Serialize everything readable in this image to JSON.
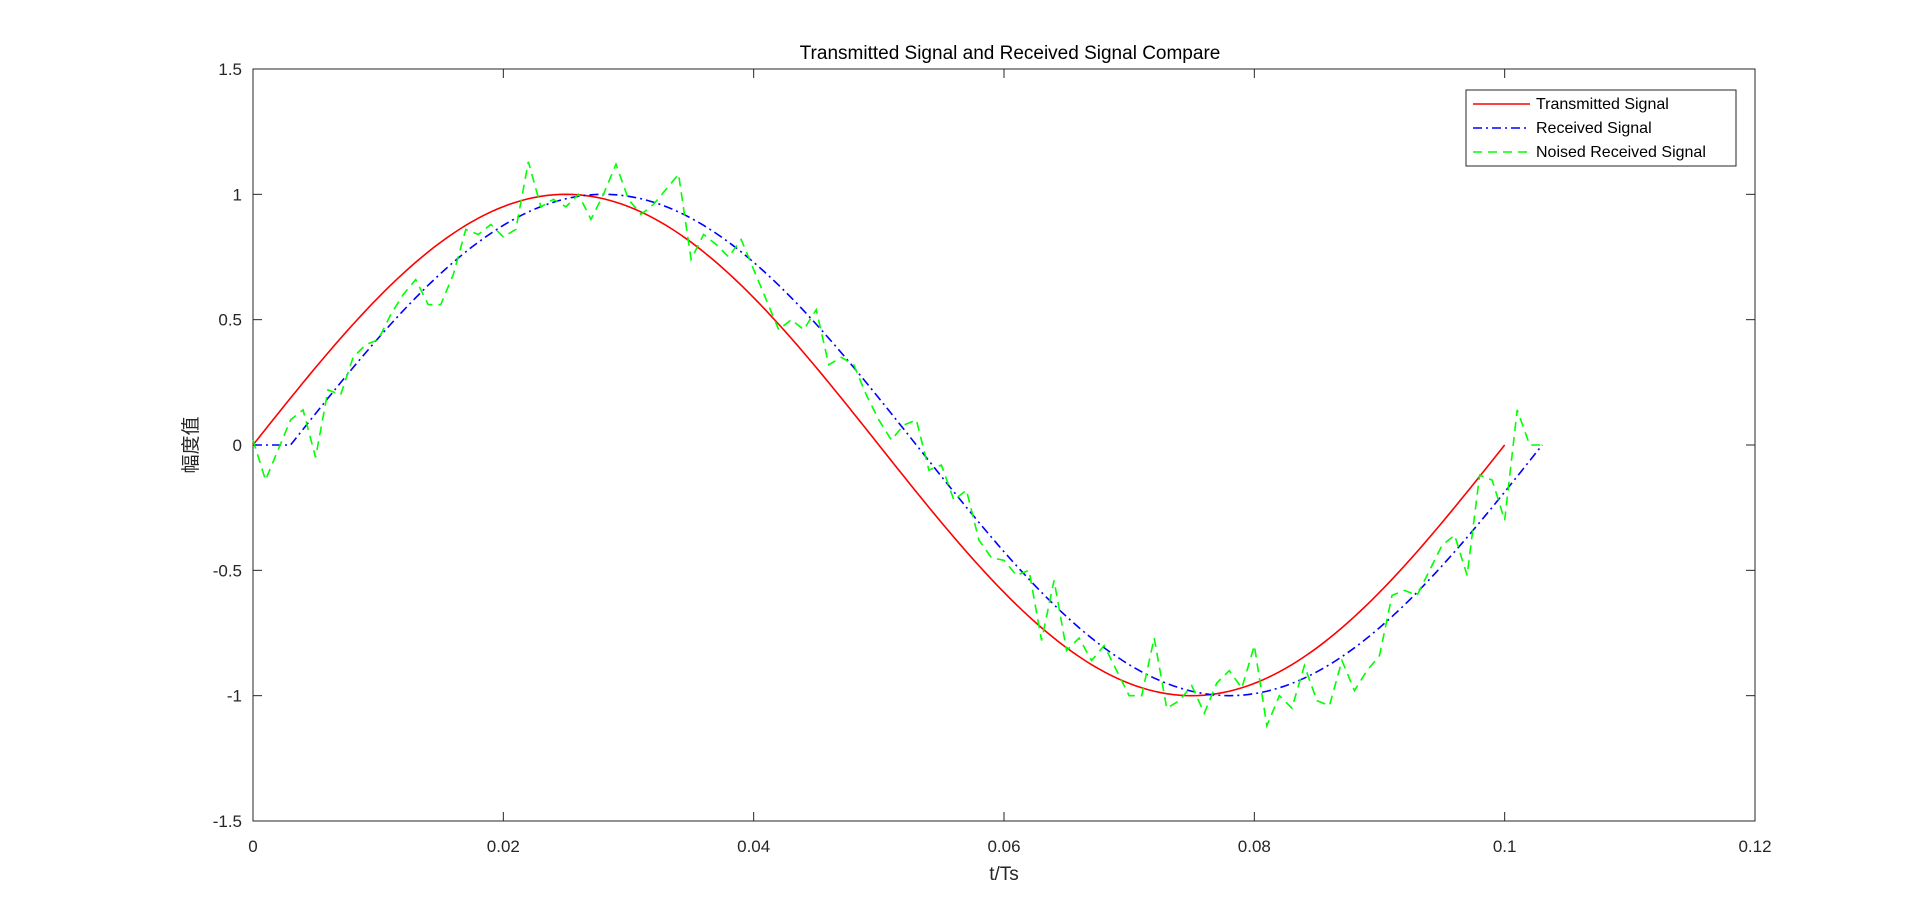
{
  "chart_data": {
    "type": "line",
    "title": "Transmitted Signal and Received Signal Compare",
    "xlabel": "t/Ts",
    "ylabel": "幅度值",
    "xlim": [
      0,
      0.12
    ],
    "ylim": [
      -1.5,
      1.5
    ],
    "xticks": [
      0,
      0.02,
      0.04,
      0.06,
      0.08,
      0.1,
      0.12
    ],
    "xtick_labels": [
      "0",
      "0.02",
      "0.04",
      "0.06",
      "0.08",
      "0.1",
      "0.12"
    ],
    "yticks": [
      -1.5,
      -1,
      -0.5,
      0,
      0.5,
      1,
      1.5
    ],
    "ytick_labels": [
      "-1.5",
      "-1",
      "-0.5",
      "0",
      "0.5",
      "1",
      "1.5"
    ],
    "grid": false,
    "legend_location": "top-right",
    "series": [
      {
        "name": "Transmitted Signal",
        "color": "#ff0000",
        "style": "solid",
        "x": [
          0,
          0.005,
          0.01,
          0.015,
          0.02,
          0.025,
          0.03,
          0.035,
          0.04,
          0.045,
          0.05,
          0.055,
          0.06,
          0.065,
          0.07,
          0.075,
          0.08,
          0.085,
          0.09,
          0.095,
          0.1
        ],
        "y": [
          0,
          0.31,
          0.59,
          0.81,
          0.95,
          1.0,
          0.95,
          0.81,
          0.59,
          0.31,
          0,
          -0.31,
          -0.59,
          -0.81,
          -0.95,
          -1.0,
          -0.95,
          -0.81,
          -0.59,
          -0.31,
          0
        ]
      },
      {
        "name": "Received Signal",
        "color": "#0000ff",
        "style": "dashdot",
        "x": [
          0,
          0.003,
          0.008,
          0.013,
          0.018,
          0.023,
          0.028,
          0.033,
          0.038,
          0.043,
          0.048,
          0.053,
          0.058,
          0.063,
          0.068,
          0.073,
          0.078,
          0.083,
          0.088,
          0.093,
          0.098,
          0.103
        ],
        "y": [
          0,
          0,
          0.31,
          0.59,
          0.81,
          0.95,
          1.0,
          0.95,
          0.81,
          0.59,
          0.31,
          0,
          -0.31,
          -0.59,
          -0.81,
          -0.95,
          -1.0,
          -0.95,
          -0.81,
          -0.59,
          -0.31,
          0
        ]
      },
      {
        "name": "Noised Received Signal",
        "color": "#00ff00",
        "style": "dashed",
        "x": [
          0,
          0.001,
          0.002,
          0.003,
          0.004,
          0.005,
          0.006,
          0.007,
          0.008,
          0.009,
          0.01,
          0.011,
          0.012,
          0.013,
          0.014,
          0.015,
          0.016,
          0.017,
          0.018,
          0.019,
          0.02,
          0.021,
          0.022,
          0.023,
          0.024,
          0.025,
          0.026,
          0.027,
          0.028,
          0.029,
          0.03,
          0.031,
          0.032,
          0.033,
          0.034,
          0.035,
          0.036,
          0.037,
          0.038,
          0.039,
          0.04,
          0.041,
          0.042,
          0.043,
          0.044,
          0.045,
          0.046,
          0.047,
          0.048,
          0.049,
          0.05,
          0.051,
          0.052,
          0.053,
          0.054,
          0.055,
          0.056,
          0.057,
          0.058,
          0.059,
          0.06,
          0.061,
          0.062,
          0.063,
          0.064,
          0.065,
          0.066,
          0.067,
          0.068,
          0.069,
          0.07,
          0.071,
          0.072,
          0.073,
          0.074,
          0.075,
          0.076,
          0.077,
          0.078,
          0.079,
          0.08,
          0.081,
          0.082,
          0.083,
          0.084,
          0.085,
          0.086,
          0.087,
          0.088,
          0.089,
          0.09,
          0.091,
          0.092,
          0.093,
          0.094,
          0.095,
          0.096,
          0.097,
          0.098,
          0.099,
          0.1,
          0.101,
          0.102,
          0.103
        ],
        "y": [
          0.02,
          -0.14,
          -0.02,
          0.1,
          0.14,
          -0.05,
          0.22,
          0.2,
          0.35,
          0.4,
          0.42,
          0.52,
          0.6,
          0.66,
          0.56,
          0.56,
          0.68,
          0.86,
          0.84,
          0.88,
          0.83,
          0.86,
          1.13,
          0.95,
          0.98,
          0.95,
          1.0,
          0.9,
          1.0,
          1.12,
          0.98,
          0.92,
          0.96,
          1.02,
          1.08,
          0.74,
          0.84,
          0.8,
          0.75,
          0.82,
          0.7,
          0.58,
          0.46,
          0.5,
          0.46,
          0.54,
          0.32,
          0.35,
          0.32,
          0.2,
          0.1,
          0.02,
          0.08,
          0.1,
          -0.1,
          -0.08,
          -0.22,
          -0.18,
          -0.38,
          -0.45,
          -0.46,
          -0.52,
          -0.5,
          -0.78,
          -0.54,
          -0.82,
          -0.77,
          -0.86,
          -0.8,
          -0.9,
          -1.0,
          -1.0,
          -0.77,
          -1.05,
          -1.02,
          -0.96,
          -1.07,
          -0.95,
          -0.9,
          -0.97,
          -0.8,
          -1.12,
          -1.0,
          -1.05,
          -0.88,
          -1.02,
          -1.04,
          -0.86,
          -0.98,
          -0.9,
          -0.84,
          -0.6,
          -0.58,
          -0.6,
          -0.5,
          -0.4,
          -0.36,
          -0.52,
          -0.12,
          -0.14,
          -0.3,
          0.14,
          0.0,
          0.0
        ]
      }
    ]
  }
}
